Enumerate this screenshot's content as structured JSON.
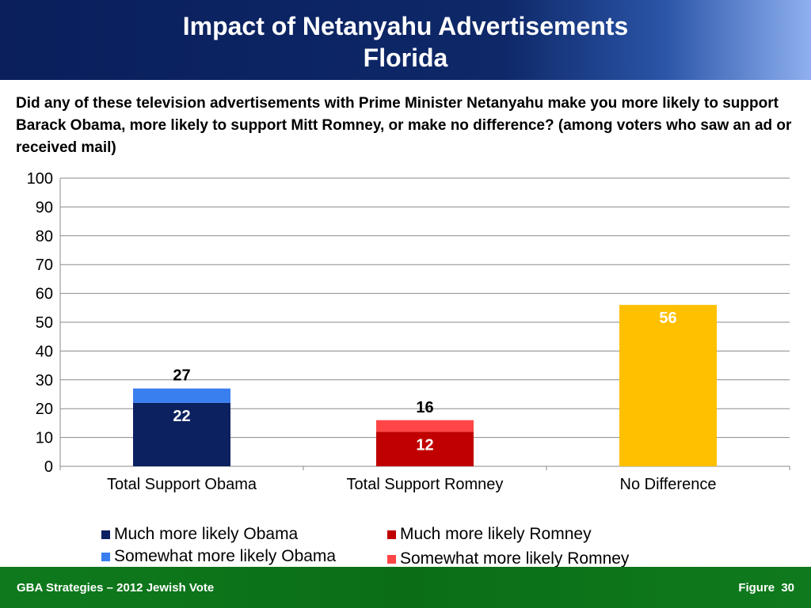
{
  "header": {
    "title_line1": "Impact of Netanyahu Advertisements",
    "title_line2": "Florida"
  },
  "question": "Did any of these television advertisements with Prime Minister Netanyahu make you more likely to support Barack Obama, more likely to support Mitt Romney, or make no difference? (among voters who saw an ad or received mail)",
  "footer": {
    "left": "GBA Strategies – 2012 Jewish Vote",
    "right": "Figure 30"
  },
  "legend": [
    {
      "label": "Much more likely Obama",
      "color": "#0c2160"
    },
    {
      "label": "Somewhat more likely Obama",
      "color": "#3a7ff0"
    },
    {
      "label": "Much more likely Romney",
      "color": "#c00000"
    },
    {
      "label": "Somewhat more likely Romney",
      "color": "#ff4545"
    }
  ],
  "chart_data": {
    "type": "bar",
    "stacked": true,
    "categories": [
      "Total Support Obama",
      "Total Support Romney",
      "No Difference"
    ],
    "ylim": [
      0,
      100
    ],
    "yticks": [
      0,
      10,
      20,
      30,
      40,
      50,
      60,
      70,
      80,
      90,
      100
    ],
    "grid": true,
    "legend_position": "bottom",
    "bars": [
      {
        "category": "Total Support Obama",
        "total_label": "27",
        "segments": [
          {
            "series": "Much more likely Obama",
            "value": 22,
            "label": "22",
            "color": "#0c2160"
          },
          {
            "series": "Somewhat more likely Obama",
            "value": 5,
            "label": "",
            "color": "#3a7ff0"
          }
        ]
      },
      {
        "category": "Total Support Romney",
        "total_label": "16",
        "segments": [
          {
            "series": "Much more likely Romney",
            "value": 12,
            "label": "12",
            "color": "#c00000"
          },
          {
            "series": "Somewhat more likely Romney",
            "value": 4,
            "label": "",
            "color": "#ff4545"
          }
        ]
      },
      {
        "category": "No Difference",
        "total_label": "",
        "segments": [
          {
            "series": "No Difference",
            "value": 56,
            "label": "56",
            "color": "#ffc000"
          }
        ]
      }
    ]
  }
}
